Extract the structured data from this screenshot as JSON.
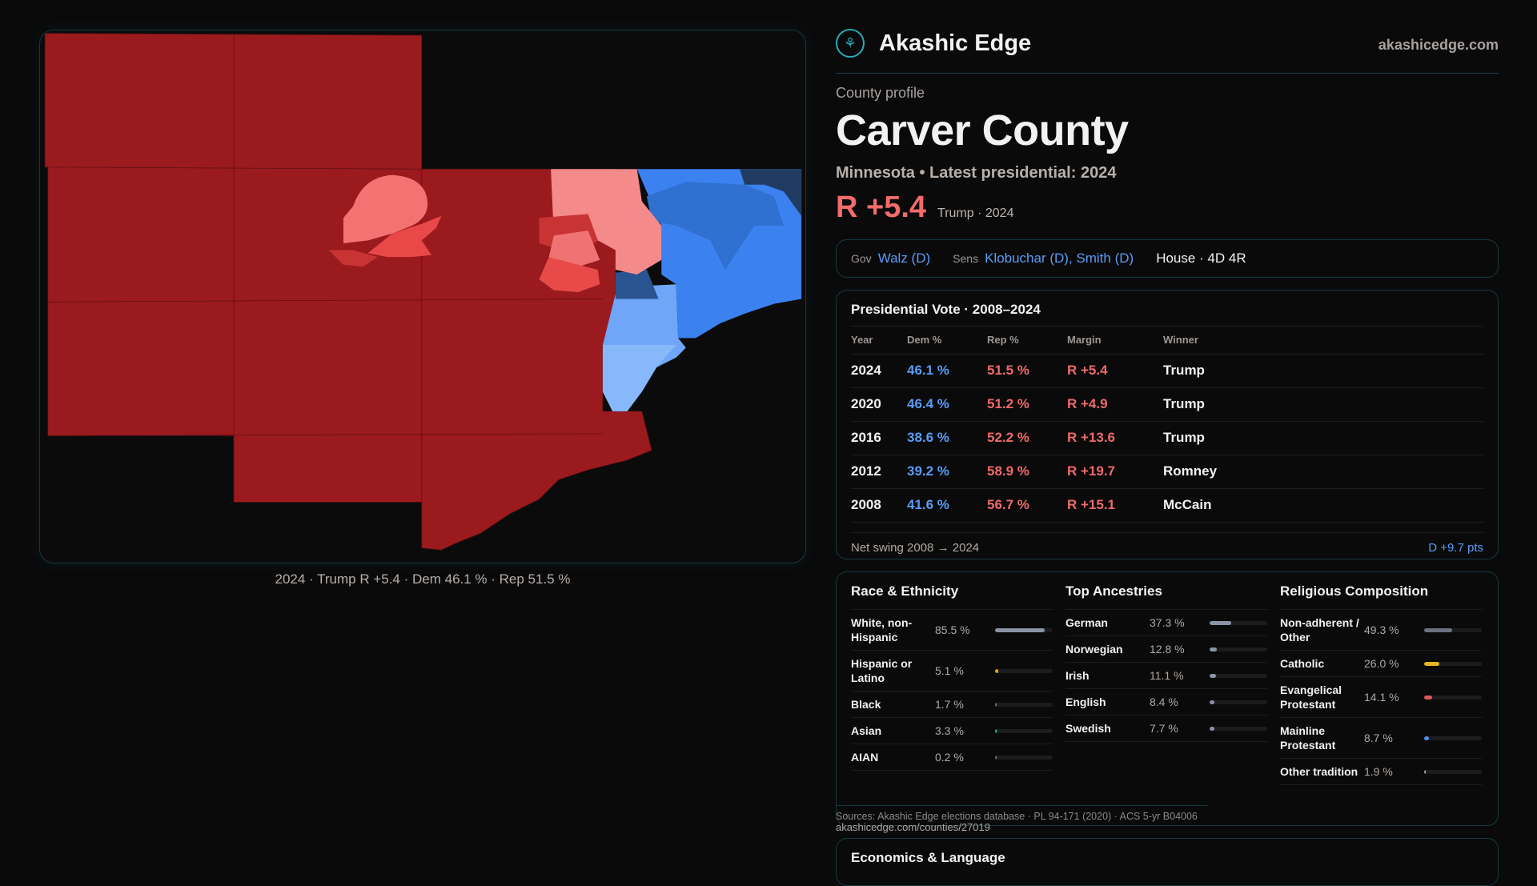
{
  "brand": {
    "name": "Akashic Edge",
    "site": "akashicedge.com",
    "logo_icon": "akashic-logo"
  },
  "profile": {
    "eyebrow": "County profile",
    "title": "Carver County",
    "subtitle": "Minnesota • Latest presidential: 2024",
    "margin": "R +5.4",
    "margin_note": "Trump · 2024"
  },
  "officials": {
    "gov_label": "Gov",
    "gov": "Walz (D)",
    "sens_label": "Sens",
    "sens": "Klobuchar (D), Smith (D)",
    "house": "House · 4D 4R"
  },
  "presidential": {
    "title": "Presidential Vote · 2008–2024",
    "headers": [
      "Year",
      "Dem %",
      "Rep %",
      "Margin",
      "Winner"
    ],
    "rows": [
      [
        "2024",
        "46.1 %",
        "51.5 %",
        "R +5.4",
        "Trump"
      ],
      [
        "2020",
        "46.4 %",
        "51.2 %",
        "R +4.9",
        "Trump"
      ],
      [
        "2016",
        "38.6 %",
        "52.2 %",
        "R +13.6",
        "Trump"
      ],
      [
        "2012",
        "39.2 %",
        "58.9 %",
        "R +19.7",
        "Romney"
      ],
      [
        "2008",
        "41.6 %",
        "56.7 %",
        "R +15.1",
        "McCain"
      ]
    ],
    "swing_label": "Net swing 2008 → 2024",
    "swing_value": "D +9.7 pts"
  },
  "race": {
    "title": "Race & Ethnicity",
    "items": [
      {
        "name": "White, non-Hispanic",
        "value": "85.5 %",
        "pct": 85.5,
        "color": "#8a94a6"
      },
      {
        "name": "Hispanic or Latino",
        "value": "5.1 %",
        "pct": 5.1,
        "color": "#e0a020"
      },
      {
        "name": "Black",
        "value": "1.7 %",
        "pct": 1.7,
        "color": "#6b7280"
      },
      {
        "name": "Asian",
        "value": "3.3 %",
        "pct": 3.3,
        "color": "#2fbf8f"
      },
      {
        "name": "AIAN",
        "value": "0.2 %",
        "pct": 0.2,
        "color": "#6b7280"
      }
    ]
  },
  "ancestry": {
    "title": "Top Ancestries",
    "items": [
      {
        "name": "German",
        "value": "37.3 %",
        "pct": 37.3,
        "color": "#8a94a6"
      },
      {
        "name": "Norwegian",
        "value": "12.8 %",
        "pct": 12.8,
        "color": "#8a94a6"
      },
      {
        "name": "Irish",
        "value": "11.1 %",
        "pct": 11.1,
        "color": "#8a94a6"
      },
      {
        "name": "English",
        "value": "8.4 %",
        "pct": 8.4,
        "color": "#8a94a6"
      },
      {
        "name": "Swedish",
        "value": "7.7 %",
        "pct": 7.7,
        "color": "#8a94a6"
      }
    ]
  },
  "religion": {
    "title": "Religious Composition",
    "items": [
      {
        "name": "Non-adherent / Other",
        "value": "49.3 %",
        "pct": 49.3,
        "color": "#6b7280"
      },
      {
        "name": "Catholic",
        "value": "26.0 %",
        "pct": 26.0,
        "color": "#e3b324"
      },
      {
        "name": "Evangelical Protestant",
        "value": "14.1 %",
        "pct": 14.1,
        "color": "#e05858"
      },
      {
        "name": "Mainline Protestant",
        "value": "8.7 %",
        "pct": 8.7,
        "color": "#4f8ef0"
      },
      {
        "name": "Other tradition",
        "value": "1.9 %",
        "pct": 1.9,
        "color": "#9ca3af"
      }
    ]
  },
  "sources": "Sources: Akashic Edge elections database · PL 94-171 (2020) · ACS 5-yr B04006",
  "url": "akashicedge.com/counties/27019",
  "economics_title": "Economics & Language",
  "map": {
    "caption": "2024 · Trump R +5.4 · Dem 46.1 % · Rep 51.5 %",
    "colors": {
      "strong_r": "#9b1a1e",
      "lean_r": "#f47272",
      "light_r": "#f58a8a",
      "mid_r": "#e84848",
      "strong_d": "#3b82f0",
      "mid_d": "#3070d0",
      "light_d": "#7fb2fa",
      "navy": "#213c62"
    }
  }
}
